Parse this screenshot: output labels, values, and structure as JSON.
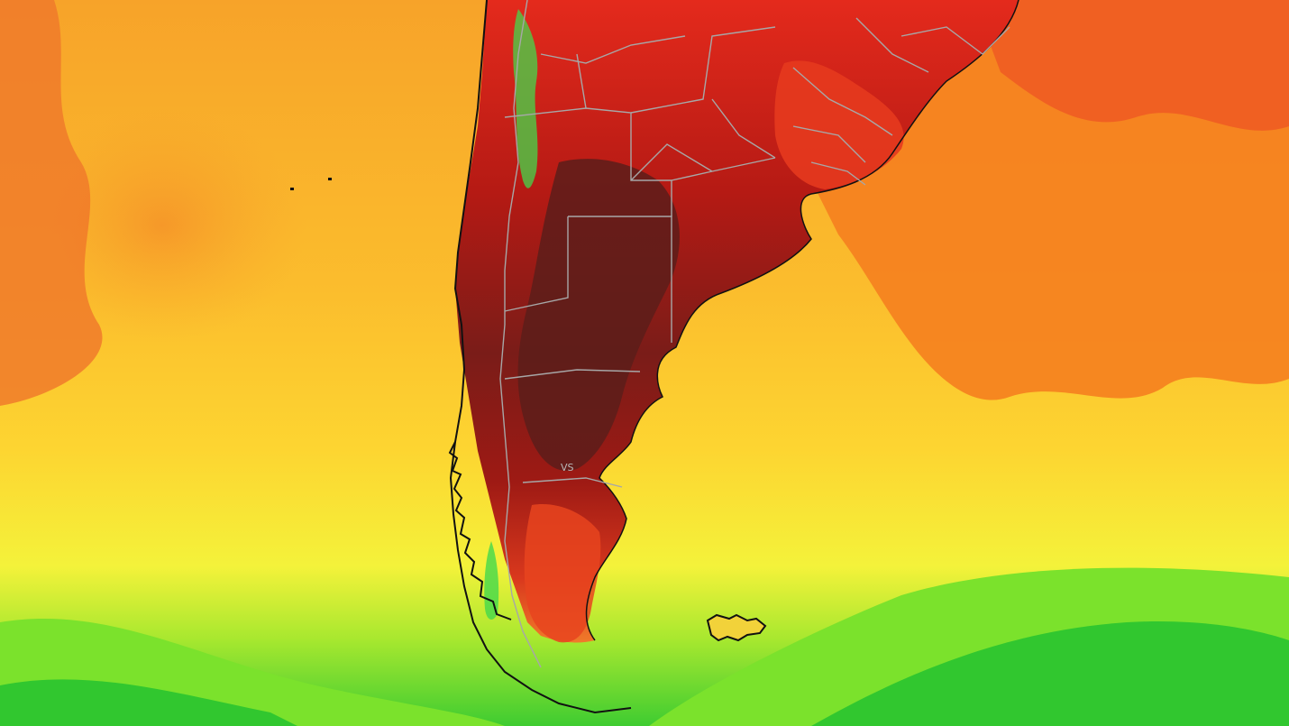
{
  "map": {
    "region_label": "VS",
    "palette": {
      "ocean_warm": "#f28c28",
      "ocean_orange": "#f7a329",
      "ocean_yellow": "#fdd531",
      "ocean_light_yellow": "#f8f43b",
      "ocean_green": "#7be22c",
      "ocean_deep_green": "#31c72f",
      "land_red": "#e6261b",
      "land_dark_red": "#a81712",
      "land_maroon": "#6b1d1a",
      "highland_green": "#43d84c",
      "border_gray": "#a7a7a7",
      "coast_black": "#111111"
    }
  }
}
